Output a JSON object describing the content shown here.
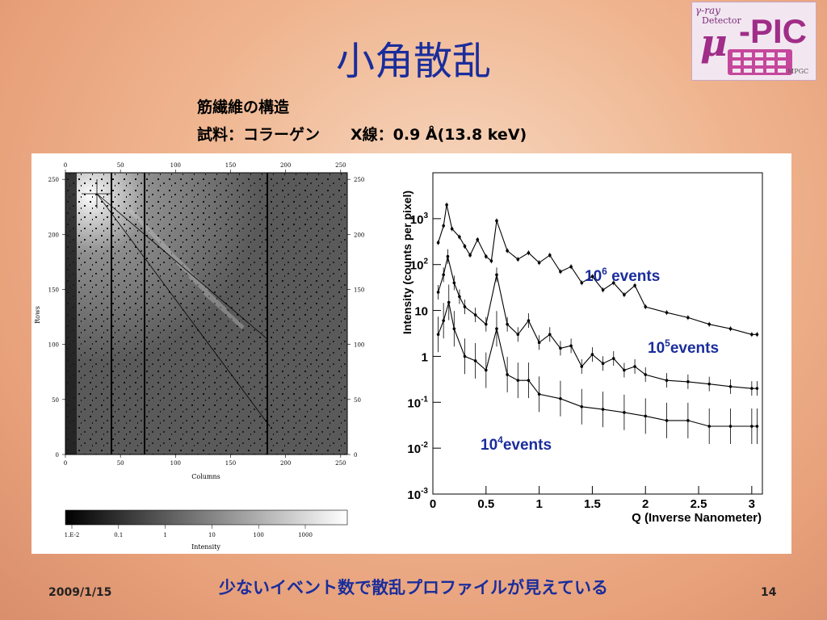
{
  "slide": {
    "title": "小角散乱",
    "subtitle_line1": "筋繊維の構造",
    "subtitle_line2": "試料：コラーゲン　　X線：0.9 Å(13.8 keV)",
    "caption": "少ないイベント数で散乱プロファイルが見えている",
    "footer_date": "2009/1/15",
    "page_number": "14"
  },
  "logo": {
    "line1": "γ-ray",
    "line2": "Detector",
    "mu": "μ",
    "pic": "-PIC",
    "org": "MPGC"
  },
  "detector_image": {
    "xlabel": "Columns",
    "ylabel": "Rows",
    "ticks": [
      "0",
      "50",
      "100",
      "150",
      "200",
      "250"
    ],
    "colorbar_ticks": [
      "1.E-2",
      "0.1",
      "1",
      "10",
      "100",
      "1000"
    ],
    "colorbar_label": "Intensity"
  },
  "chart_data": {
    "type": "line",
    "xlabel": "Q (Inverse Nanometer)",
    "ylabel": "Intensity (counts per pixel)",
    "xlim": [
      0,
      3.1
    ],
    "ylim_log10": [
      -3,
      4
    ],
    "yscale": "log",
    "x_ticks": [
      "0",
      "0.5",
      "1",
      "1.5",
      "2",
      "2.5",
      "3"
    ],
    "y_ticks": [
      {
        "base": "10",
        "exp": "3",
        "value": 1000
      },
      {
        "base": "10",
        "exp": "2",
        "value": 100
      },
      {
        "base": "10",
        "exp": "",
        "value": 10
      },
      {
        "base": "1",
        "exp": "",
        "value": 1
      },
      {
        "base": "10",
        "exp": "-1",
        "value": 0.1
      },
      {
        "base": "10",
        "exp": "-2",
        "value": 0.01
      },
      {
        "base": "10",
        "exp": "-3",
        "value": 0.001
      }
    ],
    "series": [
      {
        "name": "10^6 events",
        "label_base": "10",
        "label_exp": "6",
        "label_rest": " events",
        "x": [
          0.05,
          0.1,
          0.13,
          0.18,
          0.25,
          0.3,
          0.35,
          0.42,
          0.5,
          0.55,
          0.6,
          0.7,
          0.8,
          0.9,
          1.0,
          1.1,
          1.2,
          1.3,
          1.4,
          1.5,
          1.6,
          1.7,
          1.8,
          1.9,
          2.0,
          2.2,
          2.4,
          2.6,
          2.8,
          3.0,
          3.05
        ],
        "y": [
          300,
          700,
          2000,
          600,
          400,
          250,
          160,
          350,
          150,
          120,
          900,
          200,
          130,
          180,
          110,
          160,
          70,
          90,
          40,
          55,
          28,
          40,
          22,
          35,
          12,
          9,
          7,
          5,
          4,
          3,
          3
        ]
      },
      {
        "name": "10^5 events",
        "label_base": "10",
        "label_exp": "5",
        "label_rest": "events",
        "x": [
          0.05,
          0.1,
          0.14,
          0.2,
          0.25,
          0.3,
          0.4,
          0.5,
          0.6,
          0.7,
          0.8,
          0.9,
          1.0,
          1.1,
          1.2,
          1.3,
          1.4,
          1.5,
          1.6,
          1.7,
          1.8,
          1.9,
          2.0,
          2.2,
          2.4,
          2.6,
          2.8,
          3.0,
          3.05
        ],
        "y": [
          25,
          60,
          150,
          40,
          20,
          12,
          8,
          5,
          60,
          5,
          3,
          6,
          2,
          3,
          1.5,
          1.7,
          0.6,
          1.1,
          0.7,
          0.9,
          0.5,
          0.6,
          0.4,
          0.3,
          0.28,
          0.25,
          0.22,
          0.2,
          0.2
        ]
      },
      {
        "name": "10^4 events",
        "label_base": "10",
        "label_exp": "4",
        "label_rest": "events",
        "x": [
          0.05,
          0.1,
          0.15,
          0.2,
          0.3,
          0.4,
          0.5,
          0.6,
          0.7,
          0.8,
          0.9,
          1.0,
          1.2,
          1.4,
          1.6,
          1.8,
          2.0,
          2.2,
          2.4,
          2.6,
          2.8,
          3.0,
          3.05
        ],
        "y": [
          3,
          6,
          15,
          4,
          1,
          0.8,
          0.5,
          4,
          0.4,
          0.3,
          0.3,
          0.15,
          0.12,
          0.08,
          0.07,
          0.06,
          0.05,
          0.04,
          0.04,
          0.03,
          0.03,
          0.03,
          0.03
        ]
      }
    ]
  }
}
